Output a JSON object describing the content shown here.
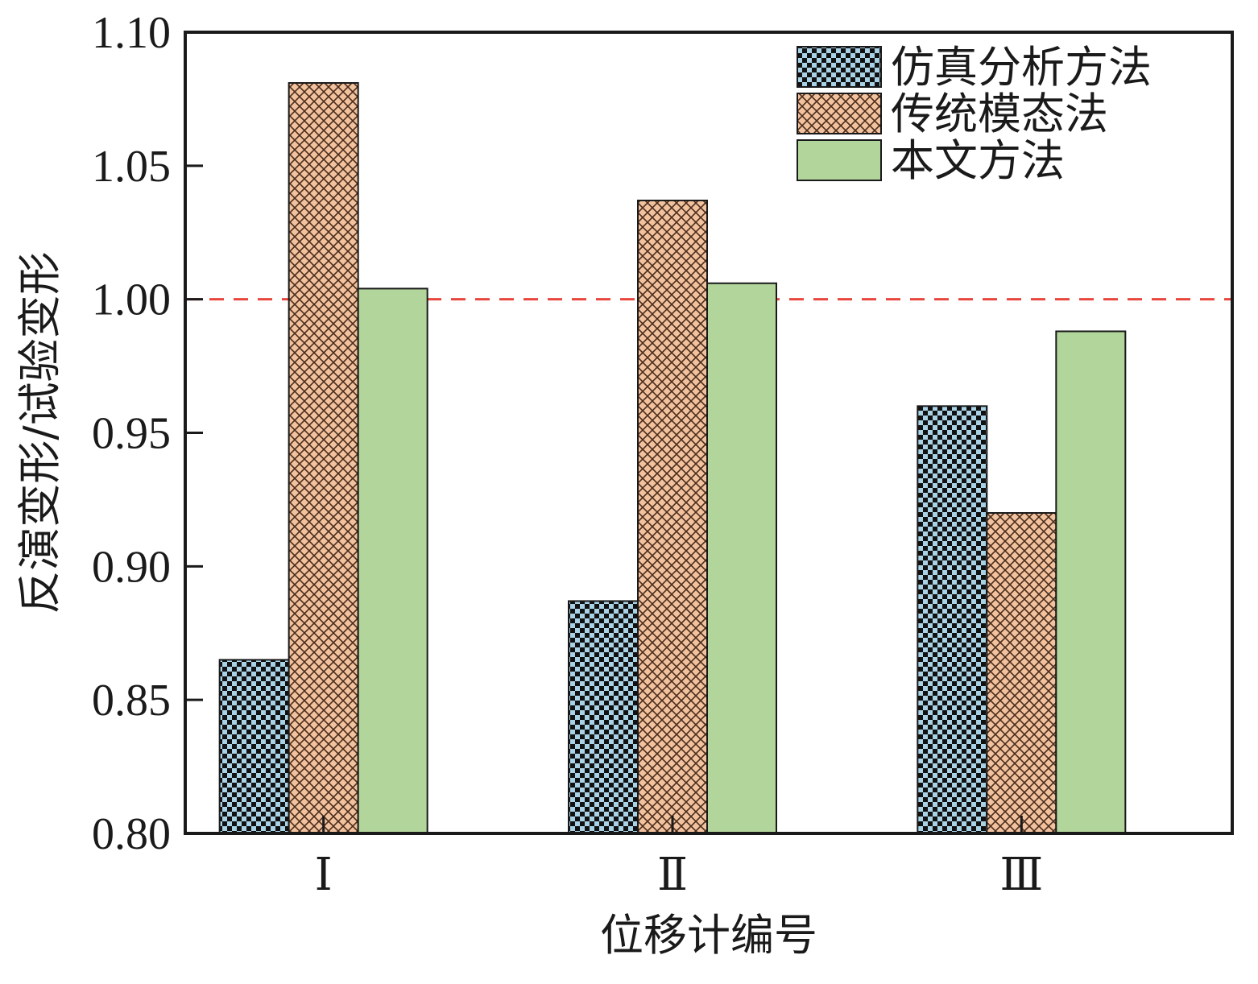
{
  "chart_data": {
    "type": "bar",
    "title": "",
    "xlabel": "位移计编号",
    "ylabel": "反演变形/试验变形",
    "categories": [
      "Ⅰ",
      "Ⅱ",
      "Ⅲ"
    ],
    "series": [
      {
        "name": "仿真分析方法",
        "values": [
          0.865,
          0.887,
          0.96
        ],
        "color": "#a9d2e6",
        "pattern": "checker"
      },
      {
        "name": "传统模态法",
        "values": [
          1.081,
          1.037,
          0.92
        ],
        "color": "#f2c29f",
        "pattern": "crosshatch"
      },
      {
        "name": "本文方法",
        "values": [
          1.004,
          1.006,
          0.988
        ],
        "color": "#b2d59c",
        "pattern": "solid"
      }
    ],
    "ylim": [
      0.8,
      1.1
    ],
    "yticks": [
      "0.80",
      "0.85",
      "0.90",
      "0.95",
      "1.00",
      "1.05",
      "1.10"
    ],
    "reference_line": {
      "y": 1.0,
      "color": "#e8453c",
      "style": "dashed"
    },
    "grid": false,
    "legend_position": "top-right"
  }
}
